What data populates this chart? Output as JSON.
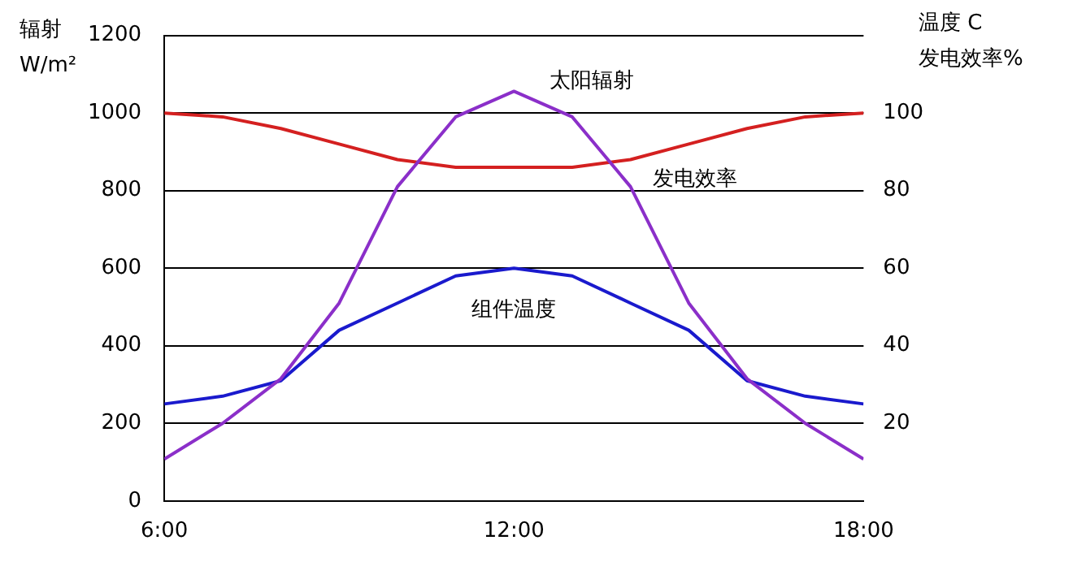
{
  "chart_data": {
    "type": "line",
    "ylabel": "辐射\nW/m²",
    "y2label": "温度 C\n发电效率%",
    "x": [
      6,
      7,
      8,
      9,
      10,
      11,
      12,
      13,
      14,
      15,
      16,
      17,
      18
    ],
    "xlim": [
      6,
      18
    ],
    "xticks": [
      {
        "value": 6,
        "label": "6:00"
      },
      {
        "value": 12,
        "label": "12:00"
      },
      {
        "value": 18,
        "label": "18:00"
      }
    ],
    "ylim": [
      0,
      1200
    ],
    "yticks": [
      0,
      200,
      400,
      600,
      800,
      1000,
      1200
    ],
    "y2lim": [
      0,
      120
    ],
    "y2ticks": [
      20,
      40,
      60,
      80,
      100
    ],
    "grid": "y",
    "legend": false,
    "marker": "none",
    "line_style": "solid",
    "series": [
      {
        "name": "太阳辐射",
        "color": "#8b2fc9",
        "values": [
          108,
          200,
          315,
          510,
          810,
          990,
          1056,
          990,
          810,
          510,
          315,
          200,
          108
        ]
      },
      {
        "name": "发电效率",
        "color": "#d42020",
        "axis": "y2",
        "values": [
          100,
          99,
          96,
          92,
          88,
          86,
          86,
          86,
          88,
          92,
          96,
          99,
          100
        ]
      },
      {
        "name": "组件温度",
        "color": "#1a1acd",
        "axis": "y2",
        "values": [
          25,
          27,
          31,
          44,
          51,
          58,
          60,
          58,
          51,
          44,
          31,
          27,
          25
        ]
      }
    ]
  }
}
